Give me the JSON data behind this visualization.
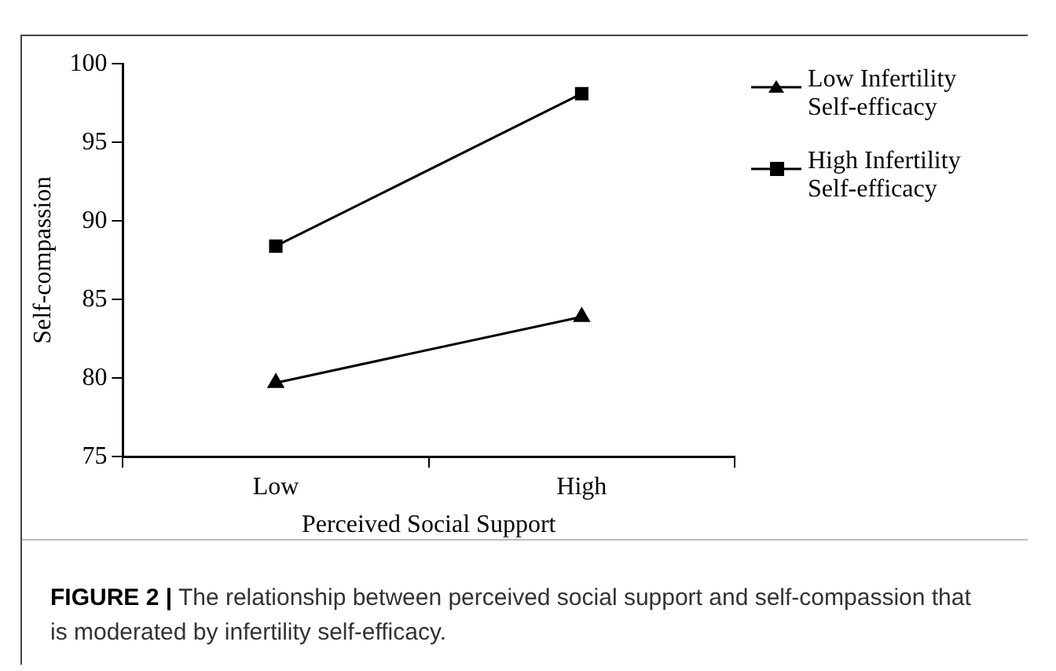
{
  "chart_data": {
    "type": "line",
    "xlabel": "Perceived Social Support",
    "ylabel": "Self-compassion",
    "categories": [
      "Low",
      "High"
    ],
    "series": [
      {
        "name": "Low Infertility Self-efficacy",
        "color": "#000000",
        "marker": "triangle",
        "values": [
          79.7,
          83.9
        ]
      },
      {
        "name": "High Infertility Self-efficacy",
        "color": "#000000",
        "marker": "square",
        "values": [
          88.4,
          98.1
        ]
      }
    ],
    "ylim": [
      75,
      100
    ],
    "yticks": [
      75,
      80,
      85,
      90,
      95,
      100
    ],
    "grid": false,
    "legend": "right",
    "line_style": "solid",
    "annotations": [
      "FIGURE 2 | The relationship between perceived social support and self-compassion that is moderated by infertility self-efficacy."
    ]
  }
}
